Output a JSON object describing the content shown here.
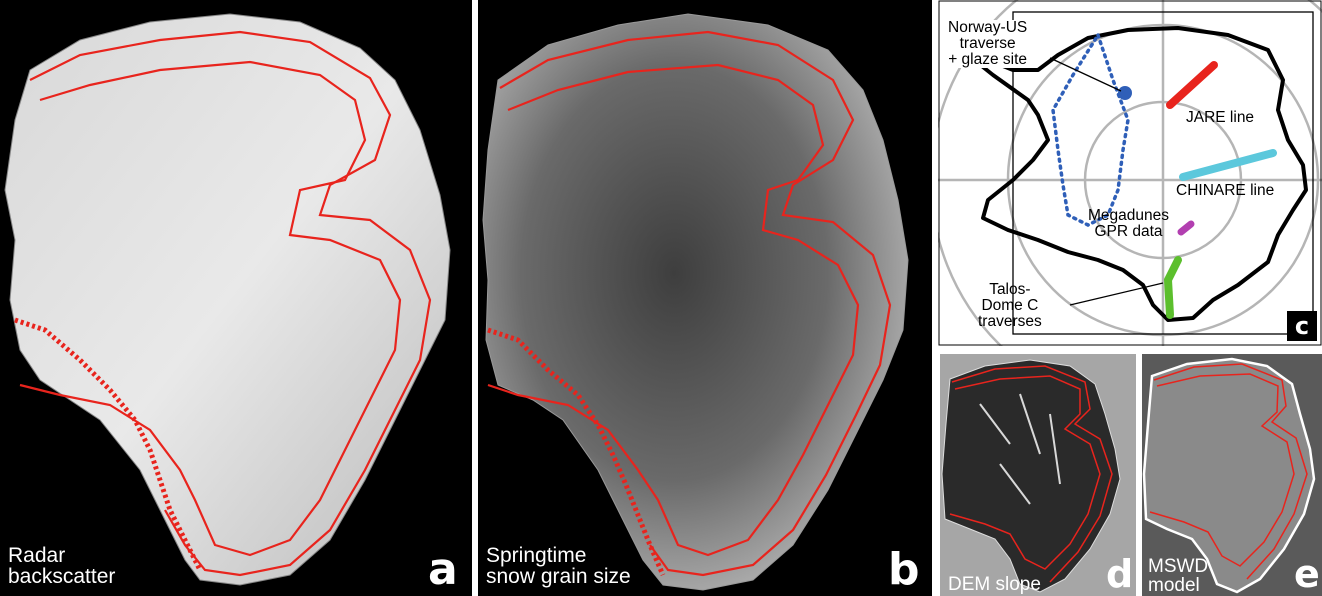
{
  "colors": {
    "boundary": "#e8241d",
    "norway_us": "#2f5fb8",
    "jare": "#e8241d",
    "chinare": "#5cc8dc",
    "megadunes": "#b23fb0",
    "talos": "#5cbf2d"
  },
  "panels": {
    "a": {
      "letter": "a",
      "caption_lines": [
        "Radar",
        "backscatter"
      ]
    },
    "b": {
      "letter": "b",
      "caption_lines": [
        "Springtime",
        "snow grain size"
      ]
    },
    "c": {
      "letter": "c",
      "labels": {
        "norway_us": [
          "Norway-US",
          "traverse",
          "+ glaze site"
        ],
        "jare": "JARE  line",
        "chinare": "CHINARE  line",
        "megadunes": [
          "Megadunes",
          "GPR data"
        ],
        "talos": [
          "Talos-",
          "Dome C",
          "traverses"
        ]
      }
    },
    "d": {
      "letter": "d",
      "caption": "DEM slope"
    },
    "e": {
      "letter": "e",
      "caption_lines": [
        "MSWD",
        "model"
      ]
    }
  }
}
